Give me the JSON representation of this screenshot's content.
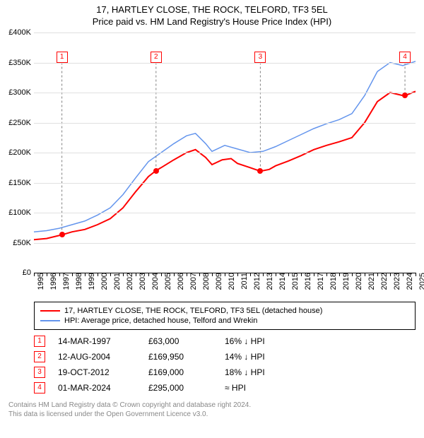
{
  "title_line1": "17, HARTLEY CLOSE, THE ROCK, TELFORD, TF3 5EL",
  "title_line2": "Price paid vs. HM Land Registry's House Price Index (HPI)",
  "y_axis": {
    "min": 0,
    "max": 400000,
    "step": 50000,
    "labels": [
      "£0",
      "£50K",
      "£100K",
      "£150K",
      "£200K",
      "£250K",
      "£300K",
      "£350K",
      "£400K"
    ]
  },
  "x_axis": {
    "min": 1995,
    "max": 2025,
    "labels": [
      "1995",
      "1996",
      "1997",
      "1998",
      "1999",
      "2000",
      "2001",
      "2002",
      "2003",
      "2004",
      "2005",
      "2006",
      "2007",
      "2008",
      "2009",
      "2010",
      "2011",
      "2012",
      "2013",
      "2014",
      "2015",
      "2016",
      "2017",
      "2018",
      "2019",
      "2020",
      "2021",
      "2022",
      "2023",
      "2024",
      "2025"
    ]
  },
  "grid_color": "#e0e0e0",
  "background_color": "#ffffff",
  "series": {
    "price_paid": {
      "label": "17, HARTLEY CLOSE, THE ROCK, TELFORD, TF3 5EL (detached house)",
      "color": "#ff0000",
      "width": 2,
      "points": [
        [
          1995.0,
          55000
        ],
        [
          1996.0,
          57000
        ],
        [
          1997.2,
          63000
        ],
        [
          1998.0,
          68000
        ],
        [
          1999.0,
          72000
        ],
        [
          2000.0,
          80000
        ],
        [
          2001.0,
          90000
        ],
        [
          2002.0,
          108000
        ],
        [
          2003.0,
          135000
        ],
        [
          2004.0,
          160000
        ],
        [
          2004.6,
          169950
        ],
        [
          2005.0,
          175000
        ],
        [
          2006.0,
          188000
        ],
        [
          2007.0,
          200000
        ],
        [
          2007.7,
          205000
        ],
        [
          2008.5,
          192000
        ],
        [
          2009.0,
          180000
        ],
        [
          2009.8,
          188000
        ],
        [
          2010.5,
          190000
        ],
        [
          2011.0,
          182000
        ],
        [
          2012.0,
          175000
        ],
        [
          2012.8,
          169000
        ],
        [
          2013.5,
          172000
        ],
        [
          2014.0,
          178000
        ],
        [
          2015.0,
          186000
        ],
        [
          2016.0,
          195000
        ],
        [
          2017.0,
          205000
        ],
        [
          2018.0,
          212000
        ],
        [
          2019.0,
          218000
        ],
        [
          2020.0,
          225000
        ],
        [
          2021.0,
          250000
        ],
        [
          2022.0,
          285000
        ],
        [
          2023.0,
          300000
        ],
        [
          2024.0,
          295000
        ],
        [
          2024.2,
          295000
        ],
        [
          2025.0,
          302000
        ]
      ]
    },
    "hpi": {
      "label": "HPI: Average price, detached house, Telford and Wrekin",
      "color": "#6495ed",
      "width": 1.5,
      "points": [
        [
          1995.0,
          68000
        ],
        [
          1996.0,
          70000
        ],
        [
          1997.0,
          74000
        ],
        [
          1998.0,
          80000
        ],
        [
          1999.0,
          86000
        ],
        [
          2000.0,
          96000
        ],
        [
          2001.0,
          108000
        ],
        [
          2002.0,
          130000
        ],
        [
          2003.0,
          158000
        ],
        [
          2004.0,
          185000
        ],
        [
          2005.0,
          200000
        ],
        [
          2006.0,
          215000
        ],
        [
          2007.0,
          228000
        ],
        [
          2007.7,
          232000
        ],
        [
          2008.5,
          215000
        ],
        [
          2009.0,
          202000
        ],
        [
          2010.0,
          212000
        ],
        [
          2011.0,
          206000
        ],
        [
          2012.0,
          200000
        ],
        [
          2013.0,
          202000
        ],
        [
          2014.0,
          210000
        ],
        [
          2015.0,
          220000
        ],
        [
          2016.0,
          230000
        ],
        [
          2017.0,
          240000
        ],
        [
          2018.0,
          248000
        ],
        [
          2019.0,
          255000
        ],
        [
          2020.0,
          265000
        ],
        [
          2021.0,
          295000
        ],
        [
          2022.0,
          335000
        ],
        [
          2023.0,
          350000
        ],
        [
          2024.0,
          345000
        ],
        [
          2025.0,
          352000
        ]
      ]
    }
  },
  "sale_markers": [
    {
      "n": "1",
      "year": 1997.2,
      "price": 63000
    },
    {
      "n": "2",
      "year": 2004.6,
      "price": 169950
    },
    {
      "n": "3",
      "year": 2012.8,
      "price": 169000
    },
    {
      "n": "4",
      "year": 2024.17,
      "price": 295000
    }
  ],
  "marker_top_y": 350000,
  "sale_dot_color": "#ff0000",
  "marker_dash_color": "#808080",
  "sales_table": [
    {
      "n": "1",
      "date": "14-MAR-1997",
      "price": "£63,000",
      "rel": "16% ↓ HPI"
    },
    {
      "n": "2",
      "date": "12-AUG-2004",
      "price": "£169,950",
      "rel": "14% ↓ HPI"
    },
    {
      "n": "3",
      "date": "19-OCT-2012",
      "price": "£169,000",
      "rel": "18% ↓ HPI"
    },
    {
      "n": "4",
      "date": "01-MAR-2024",
      "price": "£295,000",
      "rel": "≈ HPI"
    }
  ],
  "footer_line1": "Contains HM Land Registry data © Crown copyright and database right 2024.",
  "footer_line2": "This data is licensed under the Open Government Licence v3.0."
}
